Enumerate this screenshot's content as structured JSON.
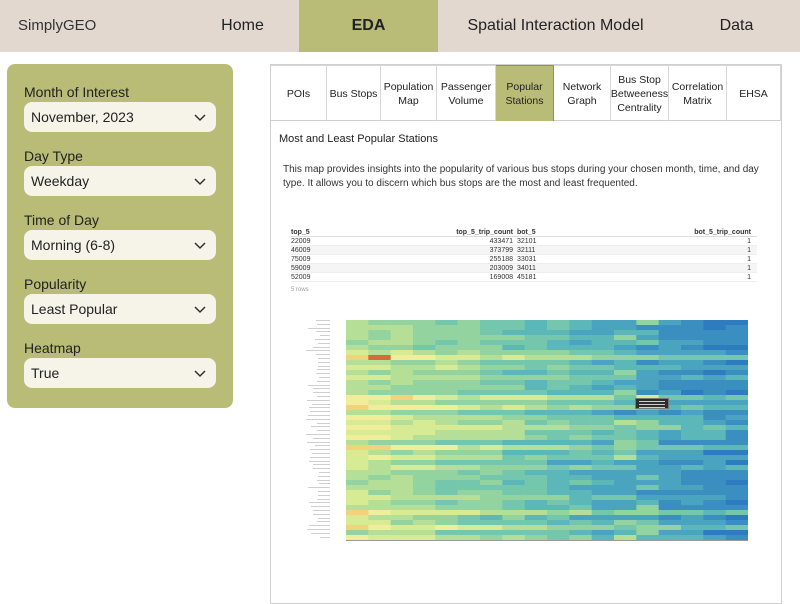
{
  "navbar": {
    "brand": "SimplyGEO",
    "items": [
      {
        "label": "Home",
        "width": 113
      },
      {
        "label": "EDA",
        "width": 139,
        "active": true
      },
      {
        "label": "Spatial Interaction Model",
        "width": 235
      },
      {
        "label": "Data",
        "width": 127
      }
    ]
  },
  "sidebar": {
    "fields": [
      {
        "label": "Month of Interest",
        "value": "November, 2023"
      },
      {
        "label": "Day Type",
        "value": "Weekday"
      },
      {
        "label": "Time of Day",
        "value": "Morning (6-8)"
      },
      {
        "label": "Popularity",
        "value": "Least Popular"
      },
      {
        "label": "Heatmap",
        "value": "True"
      }
    ]
  },
  "tabs": [
    {
      "label": "POIs"
    },
    {
      "label": "Bus Stops"
    },
    {
      "label": "Population Map"
    },
    {
      "label": "Passenger Volume"
    },
    {
      "label": "Popular Stations",
      "active": true
    },
    {
      "label": "Network Graph"
    },
    {
      "label": "Bus Stop Betweeness Centrality"
    },
    {
      "label": "Correlation Matrix"
    },
    {
      "label": "EHSA"
    }
  ],
  "content": {
    "title": "Most and Least Popular Stations",
    "description": "This map provides insights into the popularity of various bus stops during your chosen month, time, and day type. It allows you to discern which bus stops are the most and least frequented."
  },
  "table": {
    "columns": [
      "top_5",
      "top_5_trip_count",
      "bot_5",
      "bot_5_trip_count"
    ],
    "rows": [
      [
        "22009",
        "433471",
        "32101",
        "1"
      ],
      [
        "46009",
        "373799",
        "32111",
        "1"
      ],
      [
        "75009",
        "255188",
        "33031",
        "1"
      ],
      [
        "59009",
        "203009",
        "34011",
        "1"
      ],
      [
        "52009",
        "169008",
        "45181",
        "1"
      ]
    ],
    "rows_note": "5 rows"
  },
  "colors": {
    "accent": "#b9bc77",
    "navbar_bg": "#e2d8cf"
  }
}
